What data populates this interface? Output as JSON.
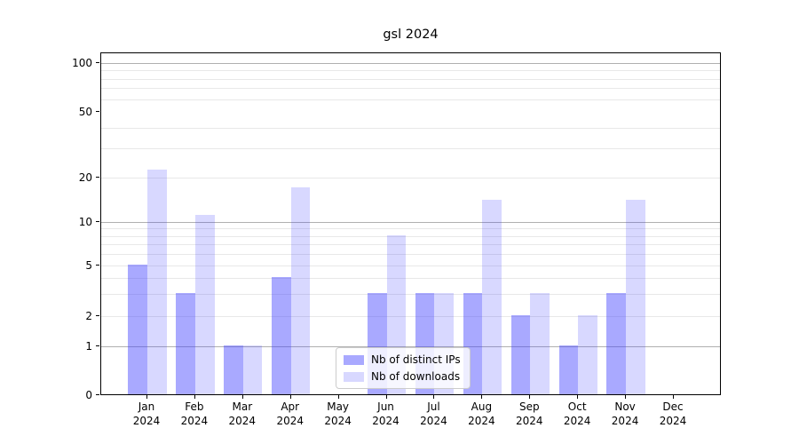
{
  "chart_data": {
    "type": "bar",
    "title": "gsl 2024",
    "categories": [
      "Jan 2024",
      "Feb 2024",
      "Mar 2024",
      "Apr 2024",
      "May 2024",
      "Jun 2024",
      "Jul 2024",
      "Aug 2024",
      "Sep 2024",
      "Oct 2024",
      "Nov 2024",
      "Dec 2024"
    ],
    "series": [
      {
        "name": "Nb of distinct IPs",
        "base_color": "#3c3cff",
        "alpha": 0.44,
        "apparent_hex": "#a9a9f5",
        "values": [
          5,
          3,
          1,
          4,
          0,
          3,
          3,
          3,
          2,
          1,
          3,
          0
        ]
      },
      {
        "name": "Nb of downloads",
        "base_color": "#3c3cff",
        "alpha": 0.2,
        "apparent_hex": "#d8d8f8",
        "values": [
          22,
          11,
          1,
          17,
          0,
          8,
          3,
          14,
          3,
          2,
          14,
          0
        ]
      }
    ],
    "xlabel": "",
    "ylabel": "",
    "yaxis": {
      "scale": "symlog",
      "tick_labels": [
        0,
        1,
        2,
        5,
        10,
        20,
        50,
        100
      ],
      "major_grid_values": [
        1,
        10,
        100
      ],
      "minor_grid_values": [
        2,
        3,
        4,
        5,
        6,
        7,
        8,
        9,
        20,
        30,
        40,
        60,
        70,
        80,
        90
      ],
      "ylim": [
        0,
        115
      ]
    },
    "grid": true,
    "legend": {
      "position": "lower-center",
      "entries": [
        "Nb of distinct IPs",
        "Nb of downloads"
      ]
    },
    "colors": {
      "major_grid": "#b0b0b0",
      "minor_grid": "#e8e8e8",
      "spine": "#000000",
      "legend_border": "#cccccc"
    }
  }
}
